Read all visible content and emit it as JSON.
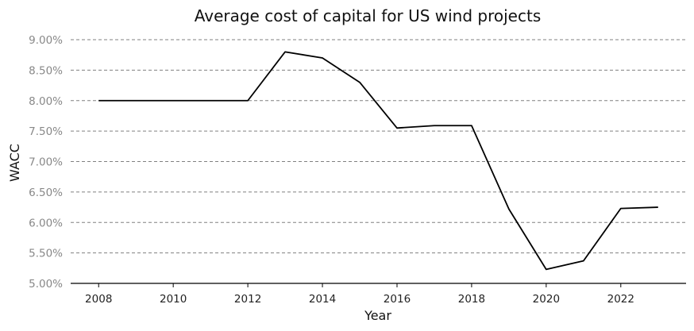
{
  "chart_data": {
    "type": "line",
    "title": "Average cost of capital for US wind projects",
    "xlabel": "Year",
    "ylabel": "WACC",
    "x": [
      2008,
      2009,
      2010,
      2011,
      2012,
      2013,
      2014,
      2015,
      2016,
      2017,
      2018,
      2019,
      2020,
      2021,
      2022,
      2023
    ],
    "series": [
      {
        "values": [
          8.0,
          8.0,
          8.0,
          8.0,
          8.0,
          8.8,
          8.7,
          8.3,
          7.55,
          7.59,
          7.59,
          6.22,
          5.23,
          5.37,
          6.23,
          6.25
        ]
      }
    ],
    "ylim": [
      5.0,
      9.0
    ],
    "yticks": [
      5.0,
      5.5,
      6.0,
      6.5,
      7.0,
      7.5,
      8.0,
      8.5,
      9.0
    ],
    "ytick_labels": [
      "5.00%",
      "5.50%",
      "6.00%",
      "6.50%",
      "7.00%",
      "7.50%",
      "8.00%",
      "8.50%",
      "9.00%"
    ],
    "xlim": [
      2007.25,
      2023.75
    ],
    "xticks": [
      2008,
      2010,
      2012,
      2014,
      2016,
      2018,
      2020,
      2022
    ],
    "xtick_labels": [
      "2008",
      "2010",
      "2012",
      "2014",
      "2016",
      "2018",
      "2020",
      "2022"
    ],
    "grid": "horizontal-dashed",
    "legend": "none",
    "colors": {
      "line": "#000000",
      "grid": "#808080",
      "ytick": "#888888"
    }
  }
}
